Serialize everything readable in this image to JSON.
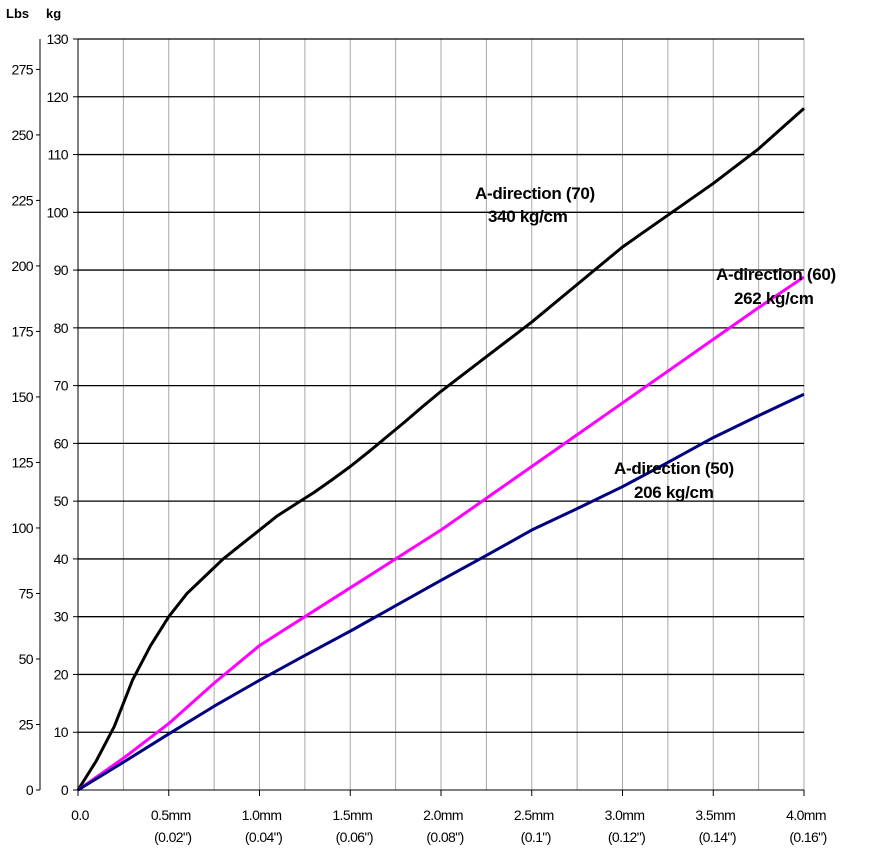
{
  "chart_data": {
    "type": "line",
    "units": {
      "lbs": "Lbs",
      "kg": "kg"
    },
    "x_ticks": [
      {
        "value": 0.0,
        "label": "0.0",
        "sub": ""
      },
      {
        "value": 0.5,
        "label": "0.5mm",
        "sub": "(0.02\")"
      },
      {
        "value": 1.0,
        "label": "1.0mm",
        "sub": "(0.04\")"
      },
      {
        "value": 1.5,
        "label": "1.5mm",
        "sub": "(0.06\")"
      },
      {
        "value": 2.0,
        "label": "2.0mm",
        "sub": "(0.08\")"
      },
      {
        "value": 2.5,
        "label": "2.5mm",
        "sub": "(0.1\")"
      },
      {
        "value": 3.0,
        "label": "3.0mm",
        "sub": "(0.12\")"
      },
      {
        "value": 3.5,
        "label": "3.5mm",
        "sub": "(0.14\")"
      },
      {
        "value": 4.0,
        "label": "4.0mm",
        "sub": "(0.16\")"
      }
    ],
    "xlim": [
      0,
      4
    ],
    "ylim_kg": [
      0,
      130
    ],
    "kg_ticks": [
      0,
      10,
      20,
      30,
      40,
      50,
      60,
      70,
      80,
      90,
      100,
      110,
      120,
      130
    ],
    "lbs_ticks": [
      0,
      25,
      50,
      75,
      100,
      125,
      150,
      175,
      200,
      225,
      250,
      275
    ],
    "grid": true,
    "series": [
      {
        "name": "A-direction (70)",
        "note": "340 kg/cm",
        "color": "#000000",
        "points": [
          [
            0,
            0
          ],
          [
            0.1,
            5
          ],
          [
            0.2,
            11
          ],
          [
            0.3,
            19
          ],
          [
            0.4,
            25
          ],
          [
            0.5,
            30
          ],
          [
            0.6,
            34
          ],
          [
            0.7,
            37
          ],
          [
            0.8,
            40
          ],
          [
            0.9,
            42.5
          ],
          [
            1.0,
            45
          ],
          [
            1.1,
            47.5
          ],
          [
            1.2,
            49.5
          ],
          [
            1.3,
            51.5
          ],
          [
            1.4,
            53.7
          ],
          [
            1.5,
            56
          ],
          [
            1.6,
            58.5
          ],
          [
            1.7,
            61.1
          ],
          [
            1.8,
            63.7
          ],
          [
            1.9,
            66.4
          ],
          [
            2.0,
            69
          ],
          [
            2.25,
            75
          ],
          [
            2.5,
            81
          ],
          [
            2.75,
            87.5
          ],
          [
            3.0,
            94
          ],
          [
            3.25,
            99.5
          ],
          [
            3.5,
            105
          ],
          [
            3.75,
            111
          ],
          [
            4.0,
            118
          ]
        ]
      },
      {
        "name": "A-direction (60)",
        "note": "262 kg/cm",
        "color": "#ff00ff",
        "points": [
          [
            0,
            0
          ],
          [
            0.25,
            5.5
          ],
          [
            0.5,
            11.5
          ],
          [
            0.75,
            18.5
          ],
          [
            1.0,
            25
          ],
          [
            1.25,
            30
          ],
          [
            1.5,
            35
          ],
          [
            1.75,
            40
          ],
          [
            2.0,
            45
          ],
          [
            2.25,
            50.5
          ],
          [
            2.5,
            56
          ],
          [
            2.75,
            61.5
          ],
          [
            3.0,
            67
          ],
          [
            3.25,
            72.5
          ],
          [
            3.5,
            78
          ],
          [
            3.75,
            83.5
          ],
          [
            4.0,
            88.8
          ]
        ]
      },
      {
        "name": "A-direction (50)",
        "note": "206 kg/cm",
        "color": "#000080",
        "points": [
          [
            0,
            0
          ],
          [
            0.25,
            4.8
          ],
          [
            0.5,
            9.7
          ],
          [
            0.75,
            14.5
          ],
          [
            1.0,
            19
          ],
          [
            1.25,
            23.3
          ],
          [
            1.5,
            27.5
          ],
          [
            1.75,
            31.9
          ],
          [
            2.0,
            36.3
          ],
          [
            2.25,
            40.6
          ],
          [
            2.5,
            45
          ],
          [
            2.75,
            48.7
          ],
          [
            3.0,
            52.5
          ],
          [
            3.25,
            56.7
          ],
          [
            3.5,
            61
          ],
          [
            3.75,
            64.8
          ],
          [
            4.0,
            68.5
          ]
        ]
      }
    ]
  }
}
